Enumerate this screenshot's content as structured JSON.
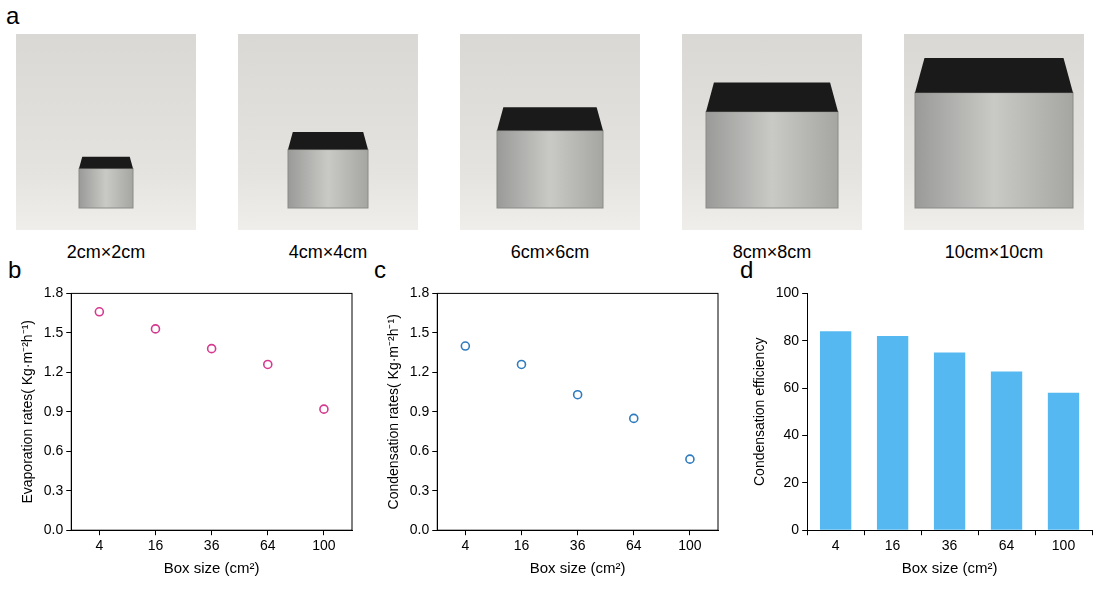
{
  "photo_panel": {
    "label": "a",
    "captions": [
      "2cm×2cm",
      "4cm×4cm",
      "6cm×6cm",
      "8cm×8cm",
      "10cm×10cm"
    ]
  },
  "chart_data": [
    {
      "label": "b",
      "type": "scatter",
      "x_label": "Box size (cm²)",
      "y_label": "Evaporation rates( Kg·m⁻²h⁻¹)",
      "categories": [
        "4",
        "16",
        "36",
        "64",
        "100"
      ],
      "values": [
        1.66,
        1.53,
        1.38,
        1.26,
        0.92
      ],
      "color": "#d6398e",
      "marker": "open_circle",
      "grid": false,
      "ylim": [
        0,
        1.8
      ],
      "yticks": [
        {
          "value": 0,
          "label": "0.0"
        },
        0.3,
        0.6,
        0.9,
        1.2,
        1.5,
        1.8
      ]
    },
    {
      "label": "c",
      "type": "scatter",
      "x_label": "Box size (cm²)",
      "y_label": "Condensation rates( Kg·m⁻²h⁻¹)",
      "categories": [
        "4",
        "16",
        "36",
        "64",
        "100"
      ],
      "values": [
        1.4,
        1.26,
        1.03,
        0.85,
        0.54
      ],
      "color": "#2e7bbf",
      "marker": "open_circle",
      "grid": false,
      "ylim": [
        0,
        1.8
      ],
      "yticks": [
        {
          "value": 0,
          "label": "0.0"
        },
        0.3,
        0.6,
        0.9,
        1.2,
        1.5,
        1.8
      ]
    },
    {
      "label": "d",
      "type": "bar",
      "x_label": "Box size (cm²)",
      "y_label": "Condensation efficiency",
      "categories": [
        "4",
        "16",
        "36",
        "64",
        "100"
      ],
      "values": [
        84,
        82,
        75,
        67,
        58
      ],
      "color": "#56b8f0",
      "grid": false,
      "ylim": [
        0,
        100
      ],
      "yticks": [
        0,
        20,
        40,
        60,
        80,
        100
      ]
    }
  ]
}
